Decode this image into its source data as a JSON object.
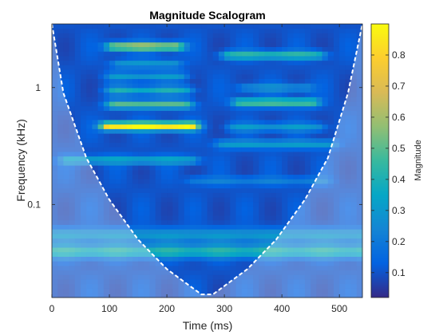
{
  "chart_data": {
    "type": "heatmap",
    "title": "Magnitude Scalogram",
    "xlabel": "Time (ms)",
    "ylabel": "Frequency (kHz)",
    "xlim": [
      0,
      540
    ],
    "ylim": [
      0.016,
      3.5
    ],
    "yscale": "log",
    "x_ticks": [
      0,
      100,
      200,
      300,
      400,
      500
    ],
    "y_ticks": [
      0.1,
      1
    ],
    "y_tick_labels": [
      "0.1",
      "1"
    ],
    "colorbar": {
      "label": "Magnitude",
      "range": [
        0.02,
        0.9
      ],
      "ticks": [
        0.1,
        0.2,
        0.3,
        0.4,
        0.5,
        0.6,
        0.7,
        0.8
      ],
      "colormap": "parula",
      "colors": [
        "#352a87",
        "#0363e1",
        "#1485d4",
        "#06a7c6",
        "#38b99e",
        "#92bf73",
        "#d9ba56",
        "#fcce2e",
        "#f9fb0e"
      ]
    },
    "cone_of_influence": {
      "style": "white dashed",
      "points": [
        [
          0,
          3.5
        ],
        [
          20,
          0.9
        ],
        [
          60,
          0.25
        ],
        [
          100,
          0.11
        ],
        [
          150,
          0.05
        ],
        [
          200,
          0.028
        ],
        [
          260,
          0.017
        ],
        [
          280,
          0.017
        ],
        [
          340,
          0.028
        ],
        [
          390,
          0.05
        ],
        [
          440,
          0.11
        ],
        [
          480,
          0.25
        ],
        [
          515,
          0.9
        ],
        [
          540,
          3.5
        ]
      ]
    },
    "background_level": 0.1,
    "features": [
      {
        "kind": "harmonic",
        "t0": 30,
        "t1": 240,
        "f": 0.24,
        "mag": 0.36
      },
      {
        "kind": "harmonic",
        "t0": 100,
        "t1": 240,
        "f": 0.47,
        "mag": 0.9
      },
      {
        "kind": "harmonic",
        "t0": 110,
        "t1": 230,
        "f": 0.72,
        "mag": 0.5
      },
      {
        "kind": "harmonic",
        "t0": 110,
        "t1": 230,
        "f": 0.95,
        "mag": 0.38
      },
      {
        "kind": "harmonic",
        "t0": 110,
        "t1": 220,
        "f": 1.25,
        "mag": 0.3
      },
      {
        "kind": "harmonic",
        "t0": 120,
        "t1": 210,
        "f": 1.6,
        "mag": 0.3
      },
      {
        "kind": "harmonic",
        "t0": 110,
        "t1": 215,
        "f": 2.25,
        "mag": 0.65
      },
      {
        "kind": "harmonic",
        "t0": 300,
        "t1": 480,
        "f": 0.33,
        "mag": 0.32
      },
      {
        "kind": "harmonic",
        "t0": 320,
        "t1": 460,
        "f": 0.46,
        "mag": 0.3
      },
      {
        "kind": "harmonic",
        "t0": 330,
        "t1": 450,
        "f": 0.75,
        "mag": 0.52
      },
      {
        "kind": "harmonic",
        "t0": 340,
        "t1": 440,
        "f": 1.0,
        "mag": 0.28
      },
      {
        "kind": "harmonic",
        "t0": 310,
        "t1": 460,
        "f": 1.9,
        "mag": 0.45
      },
      {
        "kind": "harmonic",
        "t0": 250,
        "t1": 470,
        "f": 0.16,
        "mag": 0.22
      },
      {
        "kind": "lowband",
        "t0": 0,
        "t1": 540,
        "f": 0.04,
        "mag": 0.42
      },
      {
        "kind": "lowband",
        "t0": 0,
        "t1": 540,
        "f": 0.055,
        "mag": 0.3
      }
    ]
  }
}
